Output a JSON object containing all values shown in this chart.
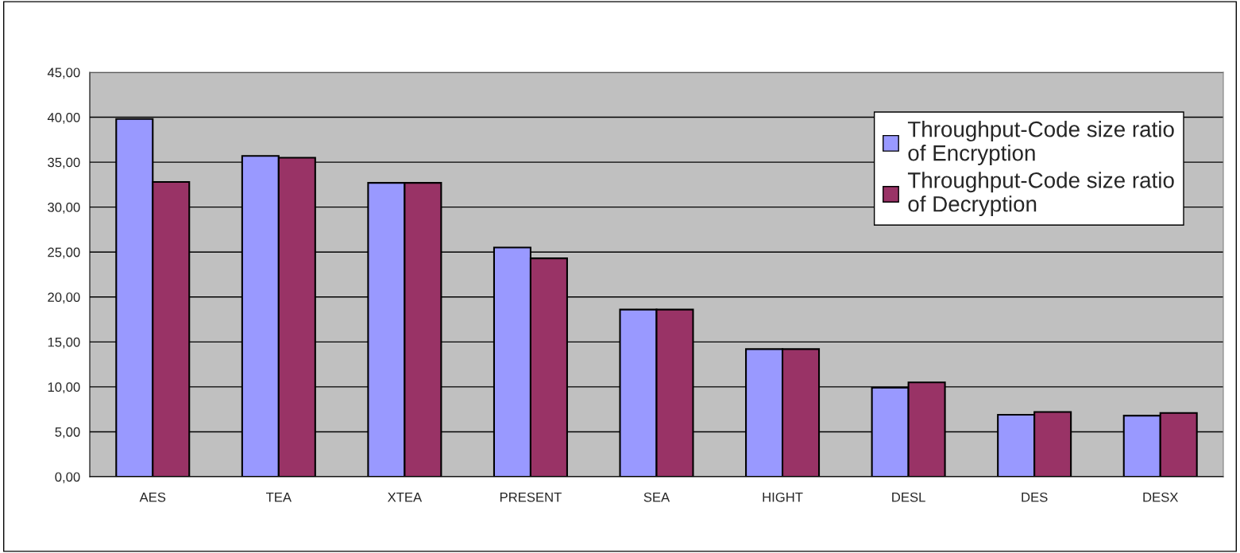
{
  "chart_data": {
    "type": "bar",
    "categories": [
      "AES",
      "TEA",
      "XTEA",
      "PRESENT",
      "SEA",
      "HIGHT",
      "DESL",
      "DES",
      "DESX"
    ],
    "series": [
      {
        "name": "Throughput-Code size ratio\nof Encryption",
        "color": "#9999ff",
        "values": [
          39.8,
          35.7,
          32.7,
          25.5,
          18.6,
          14.2,
          9.9,
          6.9,
          6.8
        ]
      },
      {
        "name": "Throughput-Code size ratio\nof Decryption",
        "color": "#993366",
        "values": [
          32.8,
          35.5,
          32.7,
          24.3,
          18.6,
          14.2,
          10.5,
          7.2,
          7.1
        ]
      }
    ],
    "ylim": [
      0,
      45
    ],
    "yticks": [
      {
        "value": 0,
        "label": "0,00"
      },
      {
        "value": 5,
        "label": "5,00"
      },
      {
        "value": 10,
        "label": "10,00"
      },
      {
        "value": 15,
        "label": "15,00"
      },
      {
        "value": 20,
        "label": "20,00"
      },
      {
        "value": 25,
        "label": "25,00"
      },
      {
        "value": 30,
        "label": "30,00"
      },
      {
        "value": 35,
        "label": "35,00"
      },
      {
        "value": 40,
        "label": "40,00"
      },
      {
        "value": 45,
        "label": "45,00"
      }
    ],
    "grid": "y",
    "legend": "top right"
  }
}
